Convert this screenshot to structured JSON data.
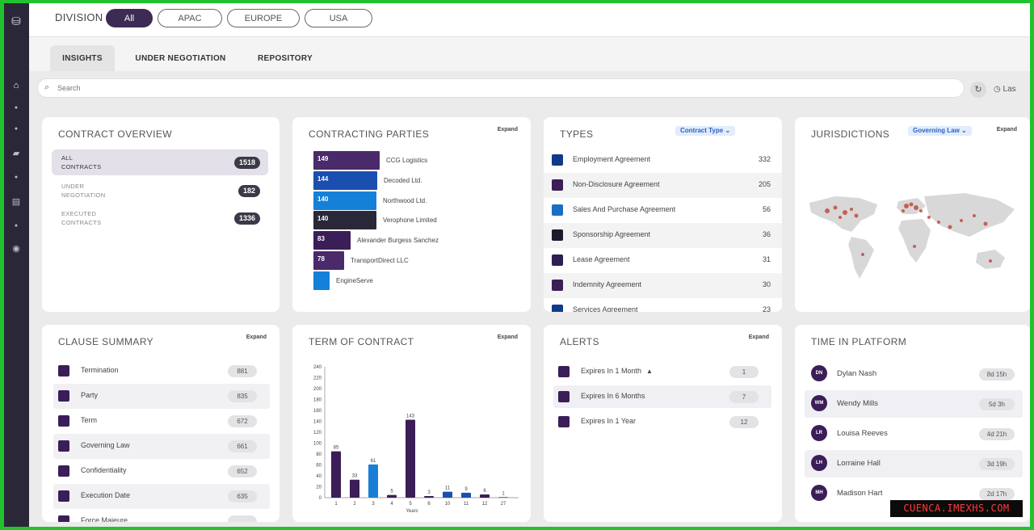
{
  "division": {
    "label": "DIVISION",
    "options": [
      "All",
      "APAC",
      "EUROPE",
      "USA"
    ]
  },
  "tabs": [
    "INSIGHTS",
    "UNDER NEGOTIATION",
    "REPOSITORY"
  ],
  "search": {
    "placeholder": "Search"
  },
  "last_label": "Las",
  "overview": {
    "title": "CONTRACT OVERVIEW",
    "rows": [
      {
        "label_line1": "ALL",
        "label_line2": "CONTRACTS",
        "count": "1518"
      },
      {
        "label_line1": "UNDER",
        "label_line2": "NEGOTIATION",
        "count": "182"
      },
      {
        "label_line1": "EXECUTED",
        "label_line2": "CONTRACTS",
        "count": "1336"
      }
    ]
  },
  "parties": {
    "title": "CONTRACTING PARTIES",
    "expand": "Expand",
    "items": [
      {
        "value": "149",
        "name": "CCG Logistics",
        "color": "#4a2a6a"
      },
      {
        "value": "144",
        "name": "Decoded Ltd.",
        "color": "#1a4fb0"
      },
      {
        "value": "140",
        "name": "Northwood Ltd.",
        "color": "#1580d8"
      },
      {
        "value": "140",
        "name": "Verophone Limited",
        "color": "#2a2838"
      },
      {
        "value": "83",
        "name": "Alexander Burgess Sanchez",
        "color": "#3b1d58"
      },
      {
        "value": "78",
        "name": "TransportDirect LLC",
        "color": "#4a2a6a"
      },
      {
        "value": "",
        "name": "EngineServe",
        "color": "#1580d8"
      }
    ]
  },
  "types": {
    "title": "TYPES",
    "dropdown": "Contract Type",
    "items": [
      {
        "name": "Employment Agreement",
        "count": "332",
        "color": "#0f3a8a"
      },
      {
        "name": "Non-Disclosure Agreement",
        "count": "205",
        "color": "#3b1d58"
      },
      {
        "name": "Sales And Purchase Agreement",
        "count": "56",
        "color": "#1a6fc4"
      },
      {
        "name": "Sponsorship Agreement",
        "count": "36",
        "color": "#1b1b2b"
      },
      {
        "name": "Lease Agreement",
        "count": "31",
        "color": "#2d1f4f"
      },
      {
        "name": "Indemnity Agreement",
        "count": "30",
        "color": "#3b1d58"
      },
      {
        "name": "Services Agreement",
        "count": "23",
        "color": "#0f3a8a"
      }
    ]
  },
  "jurisdictions": {
    "title": "JURISDICTIONS",
    "dropdown": "Governing Law",
    "expand": "Expand"
  },
  "clauses": {
    "title": "CLAUSE SUMMARY",
    "expand": "Expand",
    "items": [
      {
        "name": "Termination",
        "count": "881"
      },
      {
        "name": "Party",
        "count": "835"
      },
      {
        "name": "Term",
        "count": "672"
      },
      {
        "name": "Governing Law",
        "count": "661"
      },
      {
        "name": "Confidentiality",
        "count": "652"
      },
      {
        "name": "Execution Date",
        "count": "635"
      },
      {
        "name": "Force Majeure",
        "count": ""
      }
    ]
  },
  "term": {
    "title": "TERM OF CONTRACT",
    "expand": "Expand"
  },
  "chart_data": {
    "type": "bar",
    "title": "TERM OF CONTRACT",
    "xlabel": "Years",
    "ylabel": "",
    "categories": [
      "1",
      "2",
      "3",
      "4",
      "5",
      "6",
      "10",
      "11",
      "12",
      "27"
    ],
    "values": [
      85,
      33,
      61,
      5,
      143,
      3,
      11,
      9,
      6,
      1
    ],
    "colors": [
      "#3b1d58",
      "#3b1d58",
      "#1a7fd4",
      "#3b1d58",
      "#3b1d58",
      "#3b1d58",
      "#1a4fb0",
      "#1a4fb0",
      "#3b1d58",
      "#3b1d58"
    ],
    "yticks": [
      0,
      20,
      40,
      60,
      80,
      100,
      120,
      140,
      160,
      180,
      200,
      220,
      240
    ],
    "ylim": [
      0,
      240
    ]
  },
  "alerts": {
    "title": "ALERTS",
    "expand": "Expand",
    "items": [
      {
        "name": "Expires In 1 Month",
        "count": "1",
        "lock": true
      },
      {
        "name": "Expires In 6 Months",
        "count": "7",
        "lock": false
      },
      {
        "name": "Expires In 1 Year",
        "count": "12",
        "lock": false
      }
    ]
  },
  "time_platform": {
    "title": "TIME IN PLATFORM",
    "items": [
      {
        "initials": "DN",
        "name": "Dylan Nash",
        "time": "8d 15h"
      },
      {
        "initials": "WM",
        "name": "Wendy Mills",
        "time": "5d 3h"
      },
      {
        "initials": "LR",
        "name": "Louisa Reeves",
        "time": "4d 21h"
      },
      {
        "initials": "LH",
        "name": "Lorraine Hall",
        "time": "3d 19h"
      },
      {
        "initials": "MH",
        "name": "Madison Hart",
        "time": "2d 17h"
      }
    ]
  },
  "watermark": "CUENCA.IMEXHS.COM"
}
